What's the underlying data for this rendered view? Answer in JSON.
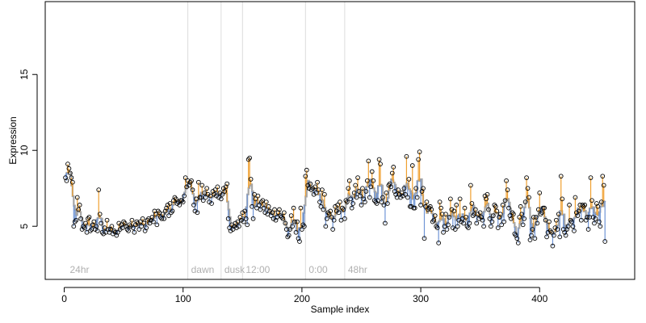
{
  "chart_data": {
    "type": "scatter",
    "xlabel": "Sample index",
    "ylabel": "Expression",
    "xlim": [
      -16,
      480
    ],
    "ylim": [
      1.5,
      19.8
    ],
    "x_ticks": [
      0,
      100,
      200,
      300,
      400
    ],
    "y_ticks": [
      5,
      10,
      15
    ],
    "grid": false,
    "phase_markers": [
      {
        "x": 2,
        "label": "24hr"
      },
      {
        "x": 104,
        "label": "dawn"
      },
      {
        "x": 132,
        "label": "dusk"
      },
      {
        "x": 150,
        "label": "12:00"
      },
      {
        "x": 203,
        "label": "0:00"
      },
      {
        "x": 236,
        "label": "48hr"
      }
    ],
    "colors": {
      "baseline": "#a6a6a6",
      "above": "#f0a030",
      "below": "#6f95d6",
      "point_stroke": "#000000",
      "divider": "#dcdcdc",
      "phase_label": "#b0b0b0"
    },
    "series": [
      {
        "x_start": 1,
        "values": [
          8.2,
          8.0,
          9.1,
          8.8,
          8.5,
          8.2,
          7.9,
          5.0,
          5.3,
          5.4,
          6.9,
          6.1,
          6.4,
          5.5,
          4.8,
          5.0,
          4.9,
          5.2,
          4.6,
          5.5,
          5.6,
          4.7,
          4.8,
          5.1,
          5.3,
          4.8,
          5.0,
          4.7,
          7.4,
          5.8,
          5.2,
          4.6,
          4.5,
          4.9,
          4.6,
          5.4,
          4.8,
          4.6,
          4.8,
          5.0,
          4.5,
          4.7,
          4.6,
          4.4,
          4.6,
          5.2,
          4.8,
          5.1,
          4.9,
          5.3,
          5.2,
          5.0,
          4.8,
          4.7,
          5.1,
          5.0,
          5.4,
          4.9,
          4.6,
          5.1,
          5.3,
          5.2,
          4.8,
          5.3,
          5.0,
          5.5,
          5.2,
          4.7,
          4.9,
          5.4,
          5.5,
          5.2,
          5.4,
          5.6,
          5.3,
          6.0,
          5.8,
          5.1,
          6.0,
          5.9,
          5.6,
          5.5,
          5.8,
          5.5,
          6.0,
          6.2,
          6.4,
          5.7,
          6.5,
          5.9,
          6.0,
          6.7,
          6.9,
          6.8,
          6.5,
          6.6,
          6.4,
          6.7,
          6.7,
          6.6,
          7.0,
          8.2,
          7.6,
          8.0,
          7.7,
          7.9,
          8.0,
          7.4,
          6.4,
          6.0,
          6.8,
          5.9,
          7.9,
          6.9,
          6.9,
          7.7,
          6.7,
          7.2,
          6.9,
          7.5,
          7.1,
          6.6,
          7.0,
          6.5,
          7.3,
          7.1,
          7.4,
          7.0,
          7.6,
          6.9,
          7.2,
          6.8,
          7.1,
          7.5,
          7.3,
          7.6,
          7.8,
          5.5,
          4.9,
          4.7,
          5.1,
          4.8,
          5.0,
          5.2,
          4.9,
          5.3,
          5.0,
          5.6,
          5.4,
          5.9,
          5.3,
          6.0,
          5.5,
          5.1,
          9.4,
          9.5,
          8.1,
          6.3,
          5.5,
          7.1,
          6.8,
          6.2,
          7.0,
          6.4,
          6.1,
          6.6,
          6.7,
          6.2,
          5.9,
          6.6,
          5.8,
          6.3,
          6.0,
          5.7,
          5.9,
          5.5,
          6.1,
          5.4,
          5.6,
          5.9,
          6.1,
          5.7,
          5.6,
          5.5,
          5.9,
          5.2,
          4.8,
          4.3,
          4.4,
          4.8,
          5.7,
          5.0,
          6.2,
          5.3,
          4.6,
          5.3,
          4.2,
          4.0,
          6.2,
          4.8,
          5.1,
          5.0,
          8.3,
          8.7,
          7.7,
          7.5,
          7.8,
          7.4,
          7.5,
          7.1,
          7.6,
          7.2,
          7.9,
          7.4,
          6.6,
          6.3,
          7.4,
          6.1,
          7.1,
          5.0,
          5.5,
          5.9,
          5.8,
          6.0,
          5.6,
          4.8,
          5.4,
          6.3,
          6.0,
          6.4,
          5.9,
          6.6,
          5.4,
          6.2,
          6.1,
          5.5,
          6.7,
          6.6,
          7.5,
          8.0,
          6.8,
          6.2,
          6.5,
          7.2,
          7.7,
          6.9,
          8.2,
          7.3,
          7.0,
          6.4,
          7.5,
          6.8,
          6.6,
          7.3,
          8.0,
          9.3,
          6.9,
          7.6,
          8.6,
          8.0,
          6.7,
          6.6,
          6.5,
          6.7,
          9.4,
          9.1,
          6.6,
          6.9,
          6.4,
          5.2,
          7.2,
          6.5,
          7.7,
          7.8,
          7.6,
          8.5,
          8.9,
          7.3,
          7.1,
          6.9,
          7.4,
          7.1,
          6.9,
          7.2,
          7.0,
          7.5,
          7.1,
          9.6,
          6.9,
          8.1,
          6.3,
          6.3,
          9.0,
          6.2,
          6.2,
          7.5,
          6.9,
          9.4,
          9.9,
          6.4,
          7.3,
          7.5,
          4.2,
          6.3,
          6.6,
          6.1,
          6.2,
          6.3,
          6.1,
          5.3,
          5.4,
          5.7,
          5.0,
          4.9,
          3.9,
          6.6,
          6.2,
          5.8,
          4.6,
          5.0,
          5.8,
          4.8,
          5.1,
          5.6,
          6.8,
          6.1,
          4.9,
          6.0,
          4.8,
          6.4,
          5.0,
          5.4,
          6.8,
          5.3,
          5.5,
          5.2,
          6.2,
          5.6,
          5.0,
          4.9,
          5.2,
          7.7,
          6.5,
          5.7,
          5.8,
          6.1,
          5.2,
          5.8,
          5.5,
          5.9,
          5.6,
          5.4,
          5.0,
          7.0,
          6.8,
          7.1,
          6.1,
          5.5,
          5.0,
          5.3,
          5.7,
          6.4,
          6.3,
          6.0,
          4.9,
          5.6,
          5.8,
          5.1,
          6.4,
          5.3,
          6.7,
          8.0,
          7.4,
          6.2,
          5.7,
          5.5,
          5.9,
          5.8,
          4.5,
          4.4,
          4.2,
          3.9,
          5.6,
          6.3,
          5.8,
          5.1,
          5.5,
          6.6,
          8.2,
          7.5,
          6.9,
          4.1,
          4.4,
          4.8,
          5.6,
          4.2,
          5.6,
          5.2,
          6.1,
          7.2,
          5.8,
          5.9,
          6.2,
          6.2,
          5.4,
          4.3,
          4.6,
          5.3,
          4.7,
          4.6,
          3.7,
          4.4,
          4.9,
          5.4,
          4.8,
          5.8,
          4.3,
          8.3,
          6.8,
          4.8,
          4.6,
          4.4,
          4.8,
          5.0,
          6.4,
          5.4,
          5.3,
          5.0,
          4.7,
          6.9,
          5.9,
          5.7,
          6.0,
          6.4,
          5.4,
          6.4,
          6.3,
          6.4,
          5.4,
          5.6,
          4.8,
          5.6,
          8.2,
          6.7,
          5.6,
          5.2,
          5.5,
          6.5,
          6.3,
          5.3,
          5.0,
          6.6,
          8.3,
          7.7,
          4.0
        ]
      }
    ]
  }
}
